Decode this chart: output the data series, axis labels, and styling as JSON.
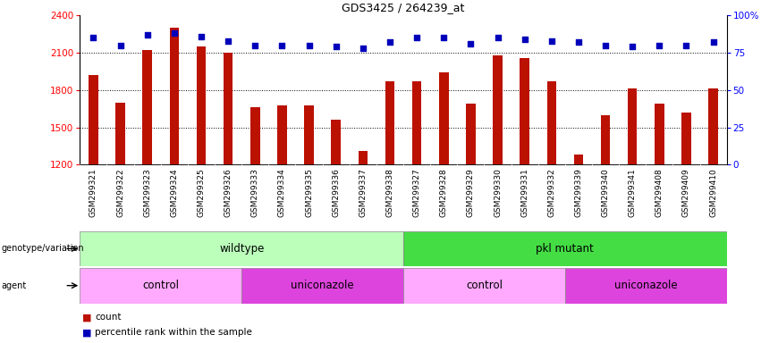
{
  "title": "GDS3425 / 264239_at",
  "samples": [
    "GSM299321",
    "GSM299322",
    "GSM299323",
    "GSM299324",
    "GSM299325",
    "GSM299326",
    "GSM299333",
    "GSM299334",
    "GSM299335",
    "GSM299336",
    "GSM299337",
    "GSM299338",
    "GSM299327",
    "GSM299328",
    "GSM299329",
    "GSM299330",
    "GSM299331",
    "GSM299332",
    "GSM299339",
    "GSM299340",
    "GSM299341",
    "GSM299408",
    "GSM299409",
    "GSM299410"
  ],
  "counts": [
    1920,
    1700,
    2120,
    2300,
    2150,
    2100,
    1660,
    1680,
    1680,
    1560,
    1310,
    1870,
    1870,
    1940,
    1690,
    2080,
    2060,
    1870,
    1280,
    1600,
    1810,
    1690,
    1620,
    1810
  ],
  "percentile_ranks": [
    85,
    80,
    87,
    88,
    86,
    83,
    80,
    80,
    80,
    79,
    78,
    82,
    85,
    85,
    81,
    85,
    84,
    83,
    82,
    80,
    79,
    80,
    80,
    82
  ],
  "ylim_left": [
    1200,
    2400
  ],
  "ylim_right": [
    0,
    100
  ],
  "yticks_left": [
    1200,
    1500,
    1800,
    2100,
    2400
  ],
  "yticks_right": [
    0,
    25,
    50,
    75,
    100
  ],
  "bar_color": "#bb1100",
  "dot_color": "#0000bb",
  "bar_width": 0.35,
  "genotype_groups": [
    {
      "label": "wildtype",
      "start": 0,
      "end": 11,
      "color": "#bbffbb"
    },
    {
      "label": "pkl mutant",
      "start": 12,
      "end": 23,
      "color": "#44dd44"
    }
  ],
  "agent_groups": [
    {
      "label": "control",
      "start": 0,
      "end": 5,
      "color": "#ffaaff"
    },
    {
      "label": "uniconazole",
      "start": 6,
      "end": 11,
      "color": "#dd44dd"
    },
    {
      "label": "control",
      "start": 12,
      "end": 17,
      "color": "#ffaaff"
    },
    {
      "label": "uniconazole",
      "start": 18,
      "end": 23,
      "color": "#dd44dd"
    }
  ],
  "legend_count_color": "#bb1100",
  "legend_dot_color": "#0000bb",
  "background_color": "#ffffff",
  "grid_color": "#888888",
  "xtick_bg": "#dddddd"
}
